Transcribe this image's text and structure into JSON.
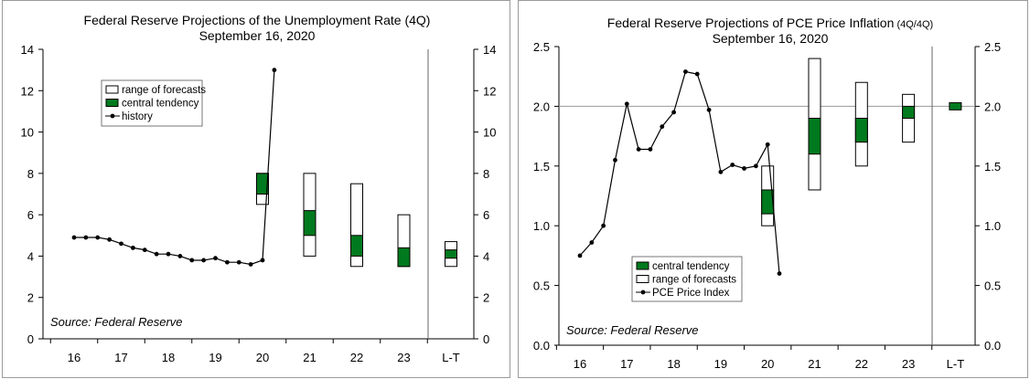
{
  "chart_data": [
    {
      "type": "line",
      "title": "Federal Reserve Projections of the Unemployment Rate (4Q)",
      "subtitle": "September 16, 2020",
      "source": "Source: Federal Reserve",
      "categories": [
        "16",
        "17",
        "18",
        "19",
        "20",
        "21",
        "22",
        "23",
        "L-T"
      ],
      "ylim": [
        0,
        14
      ],
      "yticks": [
        "0",
        "2",
        "4",
        "6",
        "8",
        "10",
        "12",
        "14"
      ],
      "legend": {
        "position": "top-left",
        "entries": [
          "range of forecasts",
          "central tendency",
          "history"
        ]
      },
      "history": {
        "name": "history",
        "x": [
          16.0,
          16.25,
          16.5,
          16.75,
          17.0,
          17.25,
          17.5,
          17.75,
          18.0,
          18.25,
          18.5,
          18.75,
          19.0,
          19.25,
          19.5,
          19.75,
          20.0,
          20.25
        ],
        "values": [
          4.9,
          4.9,
          4.9,
          4.8,
          4.6,
          4.4,
          4.3,
          4.1,
          4.1,
          4.0,
          3.8,
          3.8,
          3.9,
          3.7,
          3.7,
          3.6,
          3.8,
          13.0
        ]
      },
      "projections": [
        {
          "category": "20",
          "range": [
            6.5,
            8.0
          ],
          "central_tendency": [
            7.0,
            8.0
          ]
        },
        {
          "category": "21",
          "range": [
            4.0,
            8.0
          ],
          "central_tendency": [
            5.0,
            6.2
          ]
        },
        {
          "category": "22",
          "range": [
            3.5,
            7.5
          ],
          "central_tendency": [
            4.0,
            5.0
          ]
        },
        {
          "category": "23",
          "range": [
            3.5,
            6.0
          ],
          "central_tendency": [
            3.5,
            4.4
          ]
        },
        {
          "category": "L-T",
          "range": [
            3.5,
            4.7
          ],
          "central_tendency": [
            3.9,
            4.3
          ]
        }
      ]
    },
    {
      "type": "line",
      "title": "Federal Reserve Projections of PCE Price Inflation",
      "title_suffix": "(4Q/4Q)",
      "subtitle": "September 16, 2020",
      "source": "Source: Federal Reserve",
      "categories": [
        "16",
        "17",
        "18",
        "19",
        "20",
        "21",
        "22",
        "23",
        "L-T"
      ],
      "ylim": [
        0.0,
        2.5
      ],
      "yticks": [
        "0.0",
        "0.5",
        "1.0",
        "1.5",
        "2.0",
        "2.5"
      ],
      "reference_line": 2.0,
      "legend": {
        "position": "bottom-left",
        "entries": [
          "central tendency",
          "range of forecasts",
          "PCE Price Index"
        ]
      },
      "history": {
        "name": "PCE Price Index",
        "x": [
          16.0,
          16.25,
          16.5,
          16.75,
          17.0,
          17.25,
          17.5,
          17.75,
          18.0,
          18.25,
          18.5,
          18.75,
          19.0,
          19.25,
          19.5,
          19.75,
          20.0,
          20.25
        ],
        "values": [
          0.75,
          0.86,
          1.0,
          1.55,
          2.02,
          1.64,
          1.64,
          1.83,
          1.95,
          2.29,
          2.27,
          1.97,
          1.45,
          1.51,
          1.48,
          1.5,
          1.68,
          0.6
        ]
      },
      "projections": [
        {
          "category": "20",
          "range": [
            1.0,
            1.5
          ],
          "central_tendency": [
            1.1,
            1.3
          ]
        },
        {
          "category": "21",
          "range": [
            1.3,
            2.4
          ],
          "central_tendency": [
            1.6,
            1.9
          ]
        },
        {
          "category": "22",
          "range": [
            1.5,
            2.2
          ],
          "central_tendency": [
            1.7,
            1.9
          ]
        },
        {
          "category": "23",
          "range": [
            1.7,
            2.1
          ],
          "central_tendency": [
            1.9,
            2.0
          ]
        },
        {
          "category": "L-T",
          "range": [
            2.0,
            2.0
          ],
          "central_tendency": [
            1.97,
            2.03
          ]
        }
      ]
    }
  ],
  "colors": {
    "central_tendency": "#007a1e",
    "range_fill": "#ffffff",
    "line": "#000000",
    "axis": "#000000",
    "reference": "#9a9a9a",
    "frame": "#9a9a9a"
  }
}
